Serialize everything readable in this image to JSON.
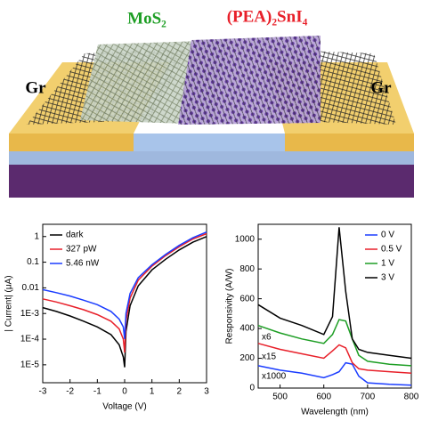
{
  "schematic": {
    "labels": [
      "MoS₂",
      "(PEA)₂SnI₄",
      "Gr",
      "Gr"
    ]
  },
  "chart_data": [
    {
      "type": "line",
      "yscale": "log",
      "xlabel": "Voltage (V)",
      "ylabel": "| Current| (μA)",
      "x": [
        -3,
        -2.5,
        -2,
        -1.5,
        -1,
        -0.5,
        -0.2,
        -0.05,
        0,
        0.05,
        0.2,
        0.5,
        1,
        1.5,
        2,
        2.5,
        3
      ],
      "series": [
        {
          "name": "dark",
          "color": "#000000",
          "values": [
            0.0017,
            0.0012,
            0.0008,
            0.0005,
            0.0003,
            0.00015,
            6e-05,
            2e-05,
            8e-06,
            0.0002,
            0.002,
            0.012,
            0.05,
            0.13,
            0.3,
            0.6,
            1.0
          ]
        },
        {
          "name": "327 pW",
          "color": "#e8202a",
          "values": [
            0.0037,
            0.0028,
            0.002,
            0.0014,
            0.0009,
            0.0005,
            0.00025,
            0.0001,
            3e-05,
            0.0005,
            0.004,
            0.02,
            0.07,
            0.18,
            0.4,
            0.8,
            1.3
          ]
        },
        {
          "name": "5.46 nW",
          "color": "#1a3cff",
          "values": [
            0.0085,
            0.0065,
            0.0048,
            0.0033,
            0.0022,
            0.0012,
            0.0006,
            0.0003,
            0.0001,
            0.001,
            0.006,
            0.025,
            0.08,
            0.2,
            0.45,
            0.9,
            1.5
          ]
        }
      ],
      "xlim": [
        -3,
        3
      ],
      "xticks": [
        -3,
        -2,
        -1,
        0,
        1,
        2,
        3
      ],
      "ylim": [
        2e-06,
        3
      ],
      "yticks": [
        {
          "value": 1e-05,
          "label": "1E-5"
        },
        {
          "value": 0.0001,
          "label": "1E-4"
        },
        {
          "value": 0.001,
          "label": "1E-3"
        },
        0.01,
        0.1,
        1
      ],
      "legend": "upper left"
    },
    {
      "type": "line",
      "xlabel": "Wavelength (nm)",
      "ylabel": "Responsivity (A/W)",
      "x": [
        450,
        500,
        550,
        600,
        620,
        635,
        650,
        665,
        680,
        700,
        750,
        800
      ],
      "series": [
        {
          "name": "0 V",
          "color": "#1a3cff",
          "values": [
            150,
            120,
            100,
            70,
            90,
            110,
            170,
            160,
            80,
            35,
            25,
            20
          ]
        },
        {
          "name": "0.5 V",
          "color": "#e8202a",
          "values": [
            300,
            260,
            230,
            200,
            250,
            290,
            270,
            170,
            130,
            120,
            110,
            100
          ]
        },
        {
          "name": "1 V",
          "color": "#1d9e24",
          "values": [
            420,
            370,
            330,
            300,
            360,
            460,
            450,
            330,
            220,
            180,
            160,
            150
          ]
        },
        {
          "name": "3 V",
          "color": "#000000",
          "values": [
            560,
            470,
            420,
            360,
            480,
            1080,
            650,
            330,
            260,
            240,
            220,
            200
          ]
        }
      ],
      "annotations": [
        "x6",
        "x15",
        "x1000"
      ],
      "xlim": [
        450,
        800
      ],
      "xticks": [
        500,
        600,
        700,
        800
      ],
      "ylim": [
        0,
        1100
      ],
      "yticks": [
        0,
        200,
        400,
        600,
        800,
        1000
      ],
      "legend": "upper right"
    }
  ]
}
